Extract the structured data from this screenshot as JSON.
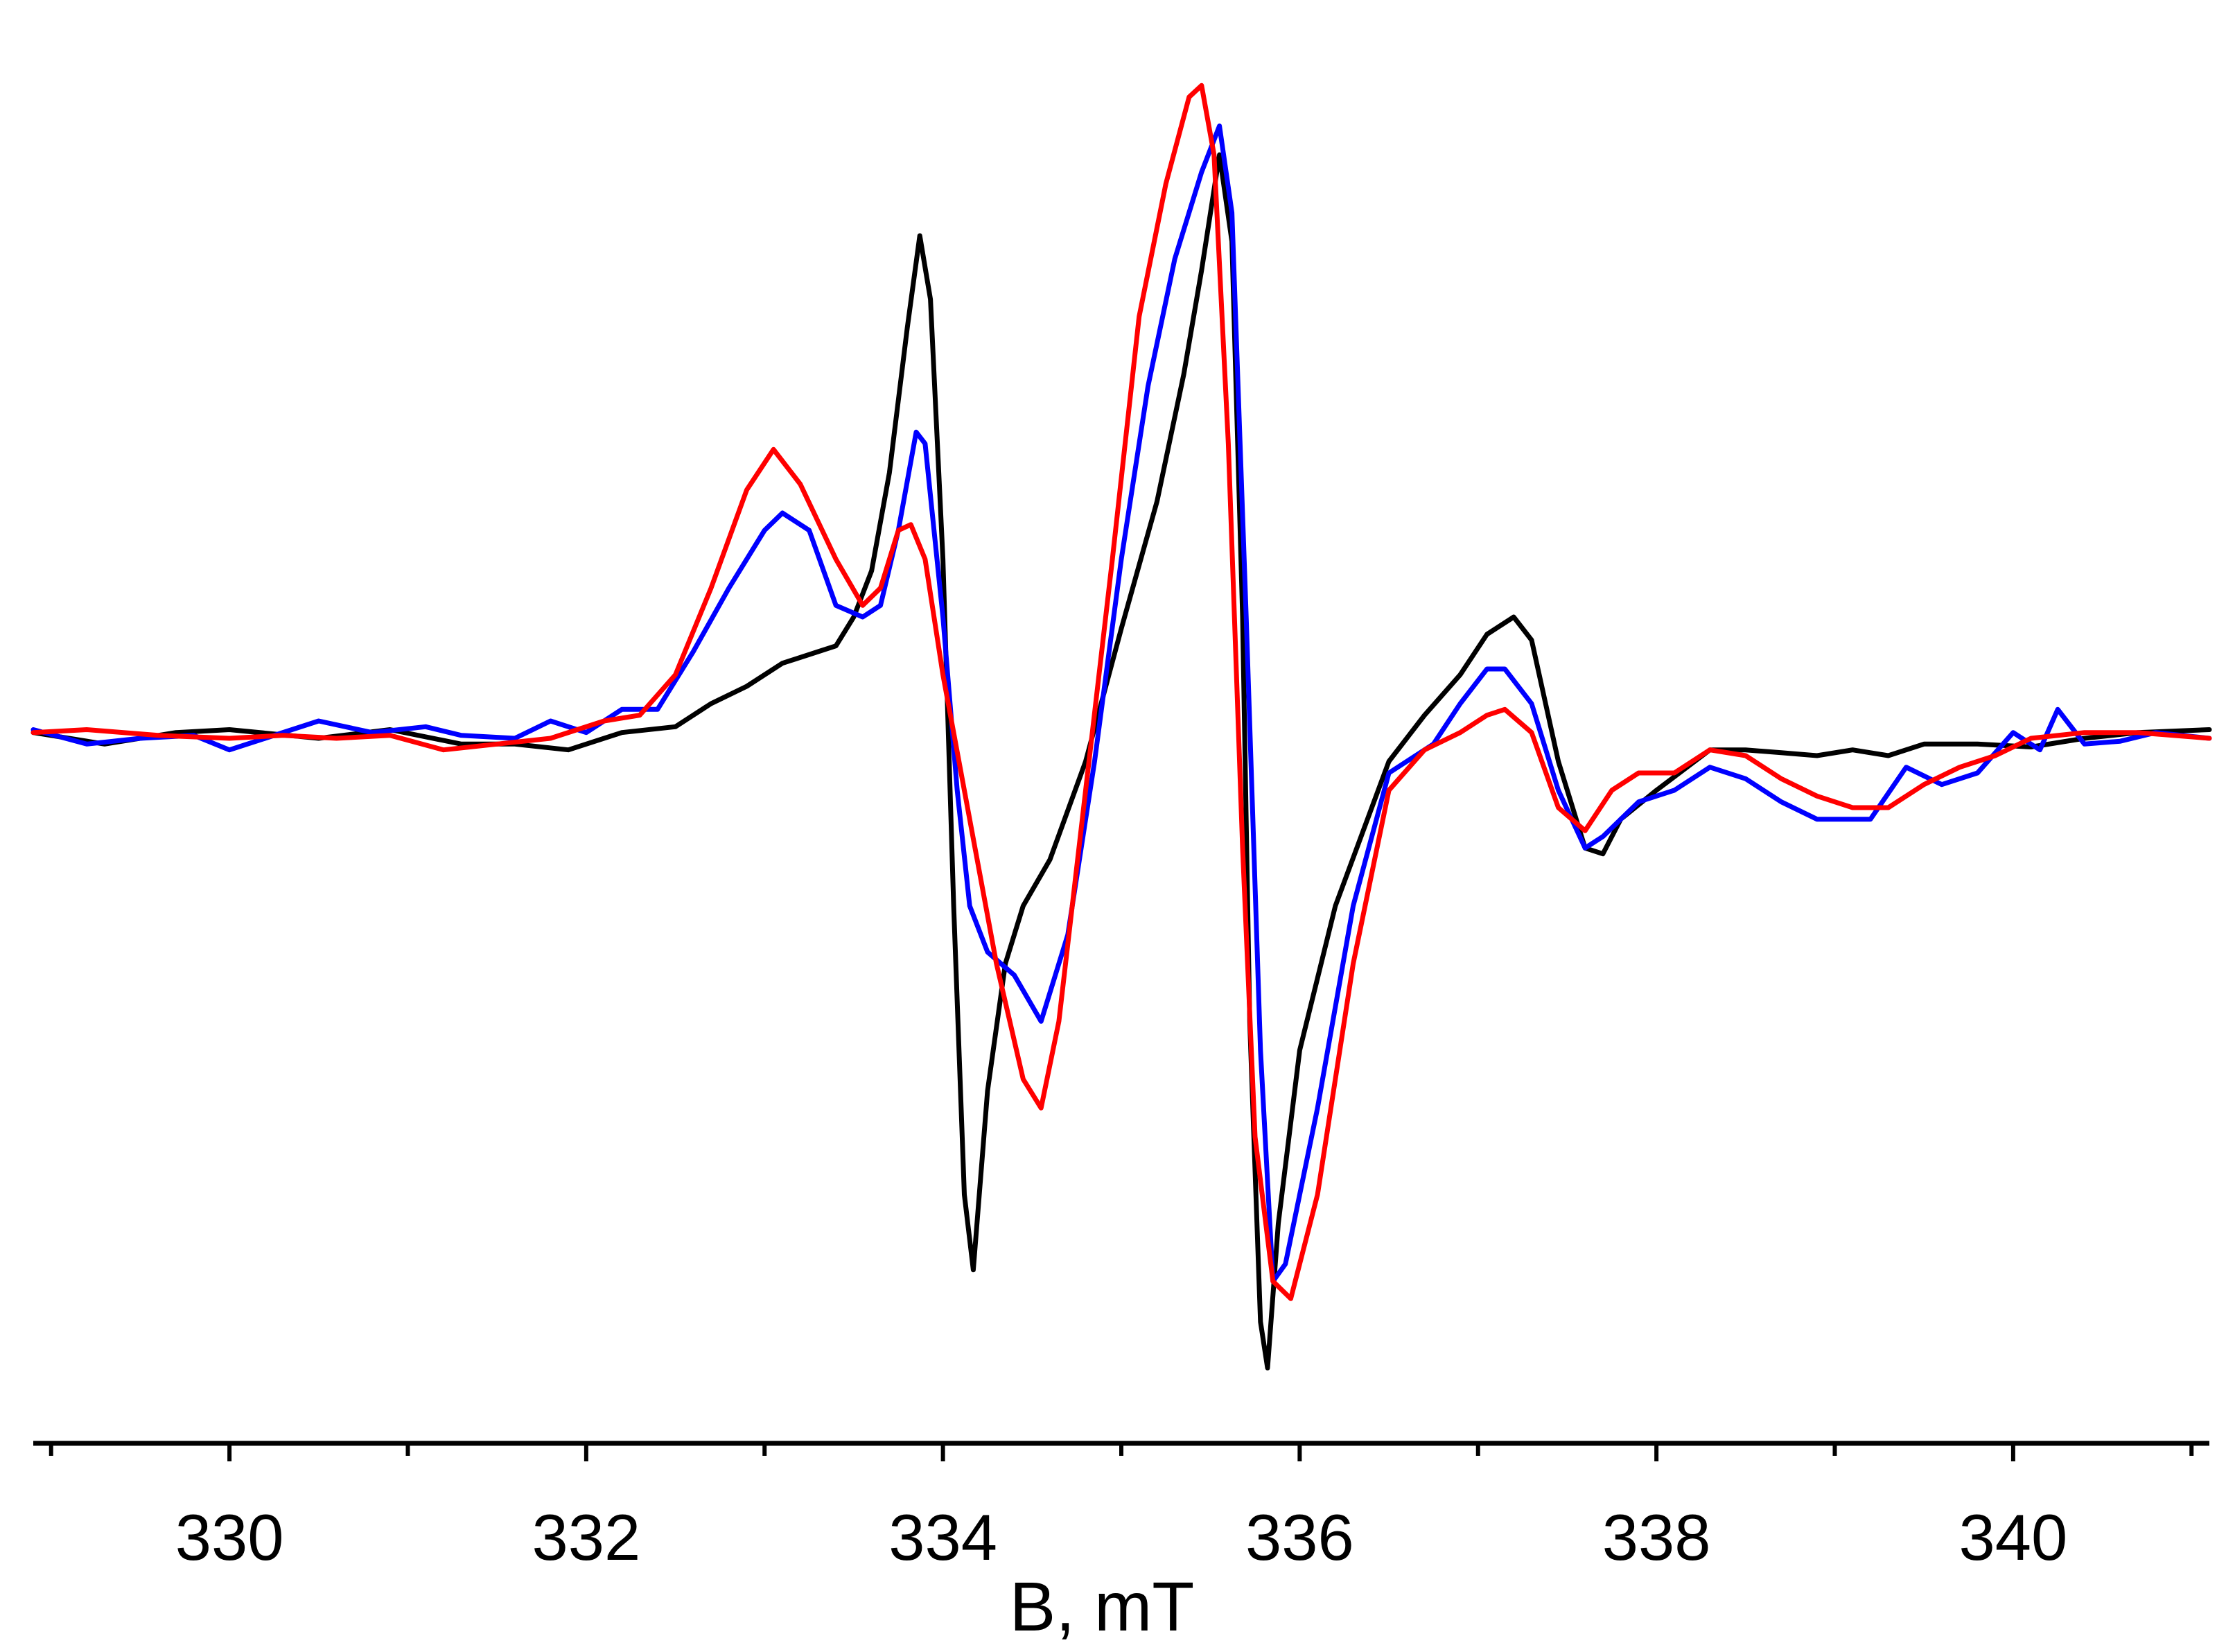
{
  "chart_data": {
    "type": "line",
    "xlabel": "B, mT",
    "ylabel": "",
    "title": "",
    "xlim": [
      328.9,
      341.1
    ],
    "ylim": [
      -1.12,
      1.22
    ],
    "y_axis_visible": false,
    "grid": false,
    "legend": "none",
    "x_ticks_major": [
      330,
      332,
      334,
      336,
      338,
      340
    ],
    "x_ticks_minor": [
      329,
      331,
      333,
      335,
      337,
      339,
      341
    ],
    "series": [
      {
        "color": "#000000",
        "points": [
          [
            328.9,
            0.0
          ],
          [
            329.3,
            -0.02
          ],
          [
            329.7,
            0.0
          ],
          [
            330.0,
            0.005
          ],
          [
            330.5,
            -0.01
          ],
          [
            330.9,
            0.005
          ],
          [
            331.3,
            -0.02
          ],
          [
            331.6,
            -0.02
          ],
          [
            331.9,
            -0.03
          ],
          [
            332.2,
            0.0
          ],
          [
            332.5,
            0.01
          ],
          [
            332.7,
            0.05
          ],
          [
            332.9,
            0.08
          ],
          [
            333.1,
            0.12
          ],
          [
            333.3,
            0.14
          ],
          [
            333.4,
            0.15
          ],
          [
            333.5,
            0.2
          ],
          [
            333.6,
            0.28
          ],
          [
            333.7,
            0.45
          ],
          [
            333.8,
            0.7
          ],
          [
            333.87,
            0.86
          ],
          [
            333.93,
            0.75
          ],
          [
            334.0,
            0.3
          ],
          [
            334.06,
            -0.3
          ],
          [
            334.12,
            -0.8
          ],
          [
            334.17,
            -0.93
          ],
          [
            334.25,
            -0.62
          ],
          [
            334.35,
            -0.4
          ],
          [
            334.45,
            -0.3
          ],
          [
            334.6,
            -0.22
          ],
          [
            334.8,
            -0.05
          ],
          [
            335.0,
            0.18
          ],
          [
            335.2,
            0.4
          ],
          [
            335.35,
            0.62
          ],
          [
            335.45,
            0.8
          ],
          [
            335.55,
            1.0
          ],
          [
            335.62,
            0.85
          ],
          [
            335.68,
            0.2
          ],
          [
            335.72,
            -0.5
          ],
          [
            335.78,
            -1.02
          ],
          [
            335.82,
            -1.1
          ],
          [
            335.88,
            -0.85
          ],
          [
            336.0,
            -0.55
          ],
          [
            336.2,
            -0.3
          ],
          [
            336.5,
            -0.05
          ],
          [
            336.7,
            0.03
          ],
          [
            336.9,
            0.1
          ],
          [
            337.05,
            0.17
          ],
          [
            337.2,
            0.2
          ],
          [
            337.3,
            0.16
          ],
          [
            337.45,
            -0.05
          ],
          [
            337.6,
            -0.2
          ],
          [
            337.7,
            -0.21
          ],
          [
            337.8,
            -0.15
          ],
          [
            338.0,
            -0.1
          ],
          [
            338.3,
            -0.03
          ],
          [
            338.5,
            -0.03
          ],
          [
            338.7,
            -0.035
          ],
          [
            338.9,
            -0.04
          ],
          [
            339.1,
            -0.03
          ],
          [
            339.3,
            -0.04
          ],
          [
            339.5,
            -0.02
          ],
          [
            339.8,
            -0.02
          ],
          [
            340.1,
            -0.025
          ],
          [
            340.4,
            -0.01
          ],
          [
            340.7,
            0.0
          ],
          [
            341.1,
            0.005
          ]
        ]
      },
      {
        "color": "#0000ff",
        "points": [
          [
            328.9,
            0.005
          ],
          [
            329.2,
            -0.02
          ],
          [
            329.5,
            -0.01
          ],
          [
            329.8,
            -0.005
          ],
          [
            330.0,
            -0.03
          ],
          [
            330.2,
            -0.01
          ],
          [
            330.5,
            0.02
          ],
          [
            330.8,
            0.0
          ],
          [
            331.1,
            0.01
          ],
          [
            331.3,
            -0.005
          ],
          [
            331.6,
            -0.01
          ],
          [
            331.8,
            0.02
          ],
          [
            332.0,
            0.0
          ],
          [
            332.2,
            0.04
          ],
          [
            332.4,
            0.04
          ],
          [
            332.6,
            0.14
          ],
          [
            332.8,
            0.25
          ],
          [
            333.0,
            0.35
          ],
          [
            333.1,
            0.38
          ],
          [
            333.25,
            0.35
          ],
          [
            333.4,
            0.22
          ],
          [
            333.55,
            0.2
          ],
          [
            333.65,
            0.22
          ],
          [
            333.75,
            0.35
          ],
          [
            333.85,
            0.52
          ],
          [
            333.9,
            0.5
          ],
          [
            334.0,
            0.2
          ],
          [
            334.08,
            -0.1
          ],
          [
            334.15,
            -0.3
          ],
          [
            334.25,
            -0.38
          ],
          [
            334.4,
            -0.42
          ],
          [
            334.55,
            -0.5
          ],
          [
            334.7,
            -0.35
          ],
          [
            334.85,
            -0.05
          ],
          [
            335.0,
            0.3
          ],
          [
            335.15,
            0.6
          ],
          [
            335.3,
            0.82
          ],
          [
            335.45,
            0.97
          ],
          [
            335.55,
            1.05
          ],
          [
            335.62,
            0.9
          ],
          [
            335.7,
            0.2
          ],
          [
            335.78,
            -0.55
          ],
          [
            335.85,
            -0.95
          ],
          [
            335.92,
            -0.92
          ],
          [
            336.1,
            -0.65
          ],
          [
            336.3,
            -0.3
          ],
          [
            336.5,
            -0.07
          ],
          [
            336.75,
            -0.02
          ],
          [
            336.9,
            0.05
          ],
          [
            337.05,
            0.11
          ],
          [
            337.15,
            0.11
          ],
          [
            337.3,
            0.05
          ],
          [
            337.45,
            -0.1
          ],
          [
            337.6,
            -0.2
          ],
          [
            337.7,
            -0.18
          ],
          [
            337.9,
            -0.12
          ],
          [
            338.1,
            -0.1
          ],
          [
            338.3,
            -0.06
          ],
          [
            338.5,
            -0.08
          ],
          [
            338.7,
            -0.12
          ],
          [
            338.9,
            -0.15
          ],
          [
            339.2,
            -0.15
          ],
          [
            339.4,
            -0.06
          ],
          [
            339.6,
            -0.09
          ],
          [
            339.8,
            -0.07
          ],
          [
            340.0,
            0.0
          ],
          [
            340.15,
            -0.03
          ],
          [
            340.25,
            0.04
          ],
          [
            340.4,
            -0.02
          ],
          [
            340.6,
            -0.015
          ],
          [
            340.8,
            0.0
          ],
          [
            341.1,
            -0.01
          ]
        ]
      },
      {
        "color": "#ff0000",
        "points": [
          [
            328.9,
            0.0
          ],
          [
            329.2,
            0.005
          ],
          [
            329.6,
            -0.005
          ],
          [
            330.0,
            -0.01
          ],
          [
            330.3,
            -0.005
          ],
          [
            330.6,
            -0.01
          ],
          [
            330.9,
            -0.005
          ],
          [
            331.2,
            -0.03
          ],
          [
            331.5,
            -0.02
          ],
          [
            331.8,
            -0.01
          ],
          [
            332.1,
            0.02
          ],
          [
            332.3,
            0.03
          ],
          [
            332.5,
            0.1
          ],
          [
            332.7,
            0.25
          ],
          [
            332.9,
            0.42
          ],
          [
            333.05,
            0.49
          ],
          [
            333.2,
            0.43
          ],
          [
            333.4,
            0.3
          ],
          [
            333.55,
            0.22
          ],
          [
            333.65,
            0.25
          ],
          [
            333.75,
            0.35
          ],
          [
            333.82,
            0.36
          ],
          [
            333.9,
            0.3
          ],
          [
            334.0,
            0.1
          ],
          [
            334.15,
            -0.15
          ],
          [
            334.3,
            -0.4
          ],
          [
            334.45,
            -0.6
          ],
          [
            334.55,
            -0.65
          ],
          [
            334.65,
            -0.5
          ],
          [
            334.8,
            -0.1
          ],
          [
            334.95,
            0.3
          ],
          [
            335.1,
            0.72
          ],
          [
            335.25,
            0.95
          ],
          [
            335.38,
            1.1
          ],
          [
            335.45,
            1.12
          ],
          [
            335.52,
            1.0
          ],
          [
            335.6,
            0.5
          ],
          [
            335.68,
            -0.2
          ],
          [
            335.75,
            -0.7
          ],
          [
            335.85,
            -0.95
          ],
          [
            335.95,
            -0.98
          ],
          [
            336.1,
            -0.8
          ],
          [
            336.3,
            -0.4
          ],
          [
            336.5,
            -0.1
          ],
          [
            336.7,
            -0.03
          ],
          [
            336.9,
            0.0
          ],
          [
            337.05,
            0.03
          ],
          [
            337.15,
            0.04
          ],
          [
            337.3,
            0.0
          ],
          [
            337.45,
            -0.13
          ],
          [
            337.6,
            -0.17
          ],
          [
            337.75,
            -0.1
          ],
          [
            337.9,
            -0.07
          ],
          [
            338.1,
            -0.07
          ],
          [
            338.3,
            -0.03
          ],
          [
            338.5,
            -0.04
          ],
          [
            338.7,
            -0.08
          ],
          [
            338.9,
            -0.11
          ],
          [
            339.1,
            -0.13
          ],
          [
            339.3,
            -0.13
          ],
          [
            339.5,
            -0.09
          ],
          [
            339.7,
            -0.06
          ],
          [
            339.9,
            -0.04
          ],
          [
            340.1,
            -0.01
          ],
          [
            340.4,
            0.0
          ],
          [
            340.7,
            0.0
          ],
          [
            341.1,
            -0.01
          ]
        ]
      }
    ]
  }
}
